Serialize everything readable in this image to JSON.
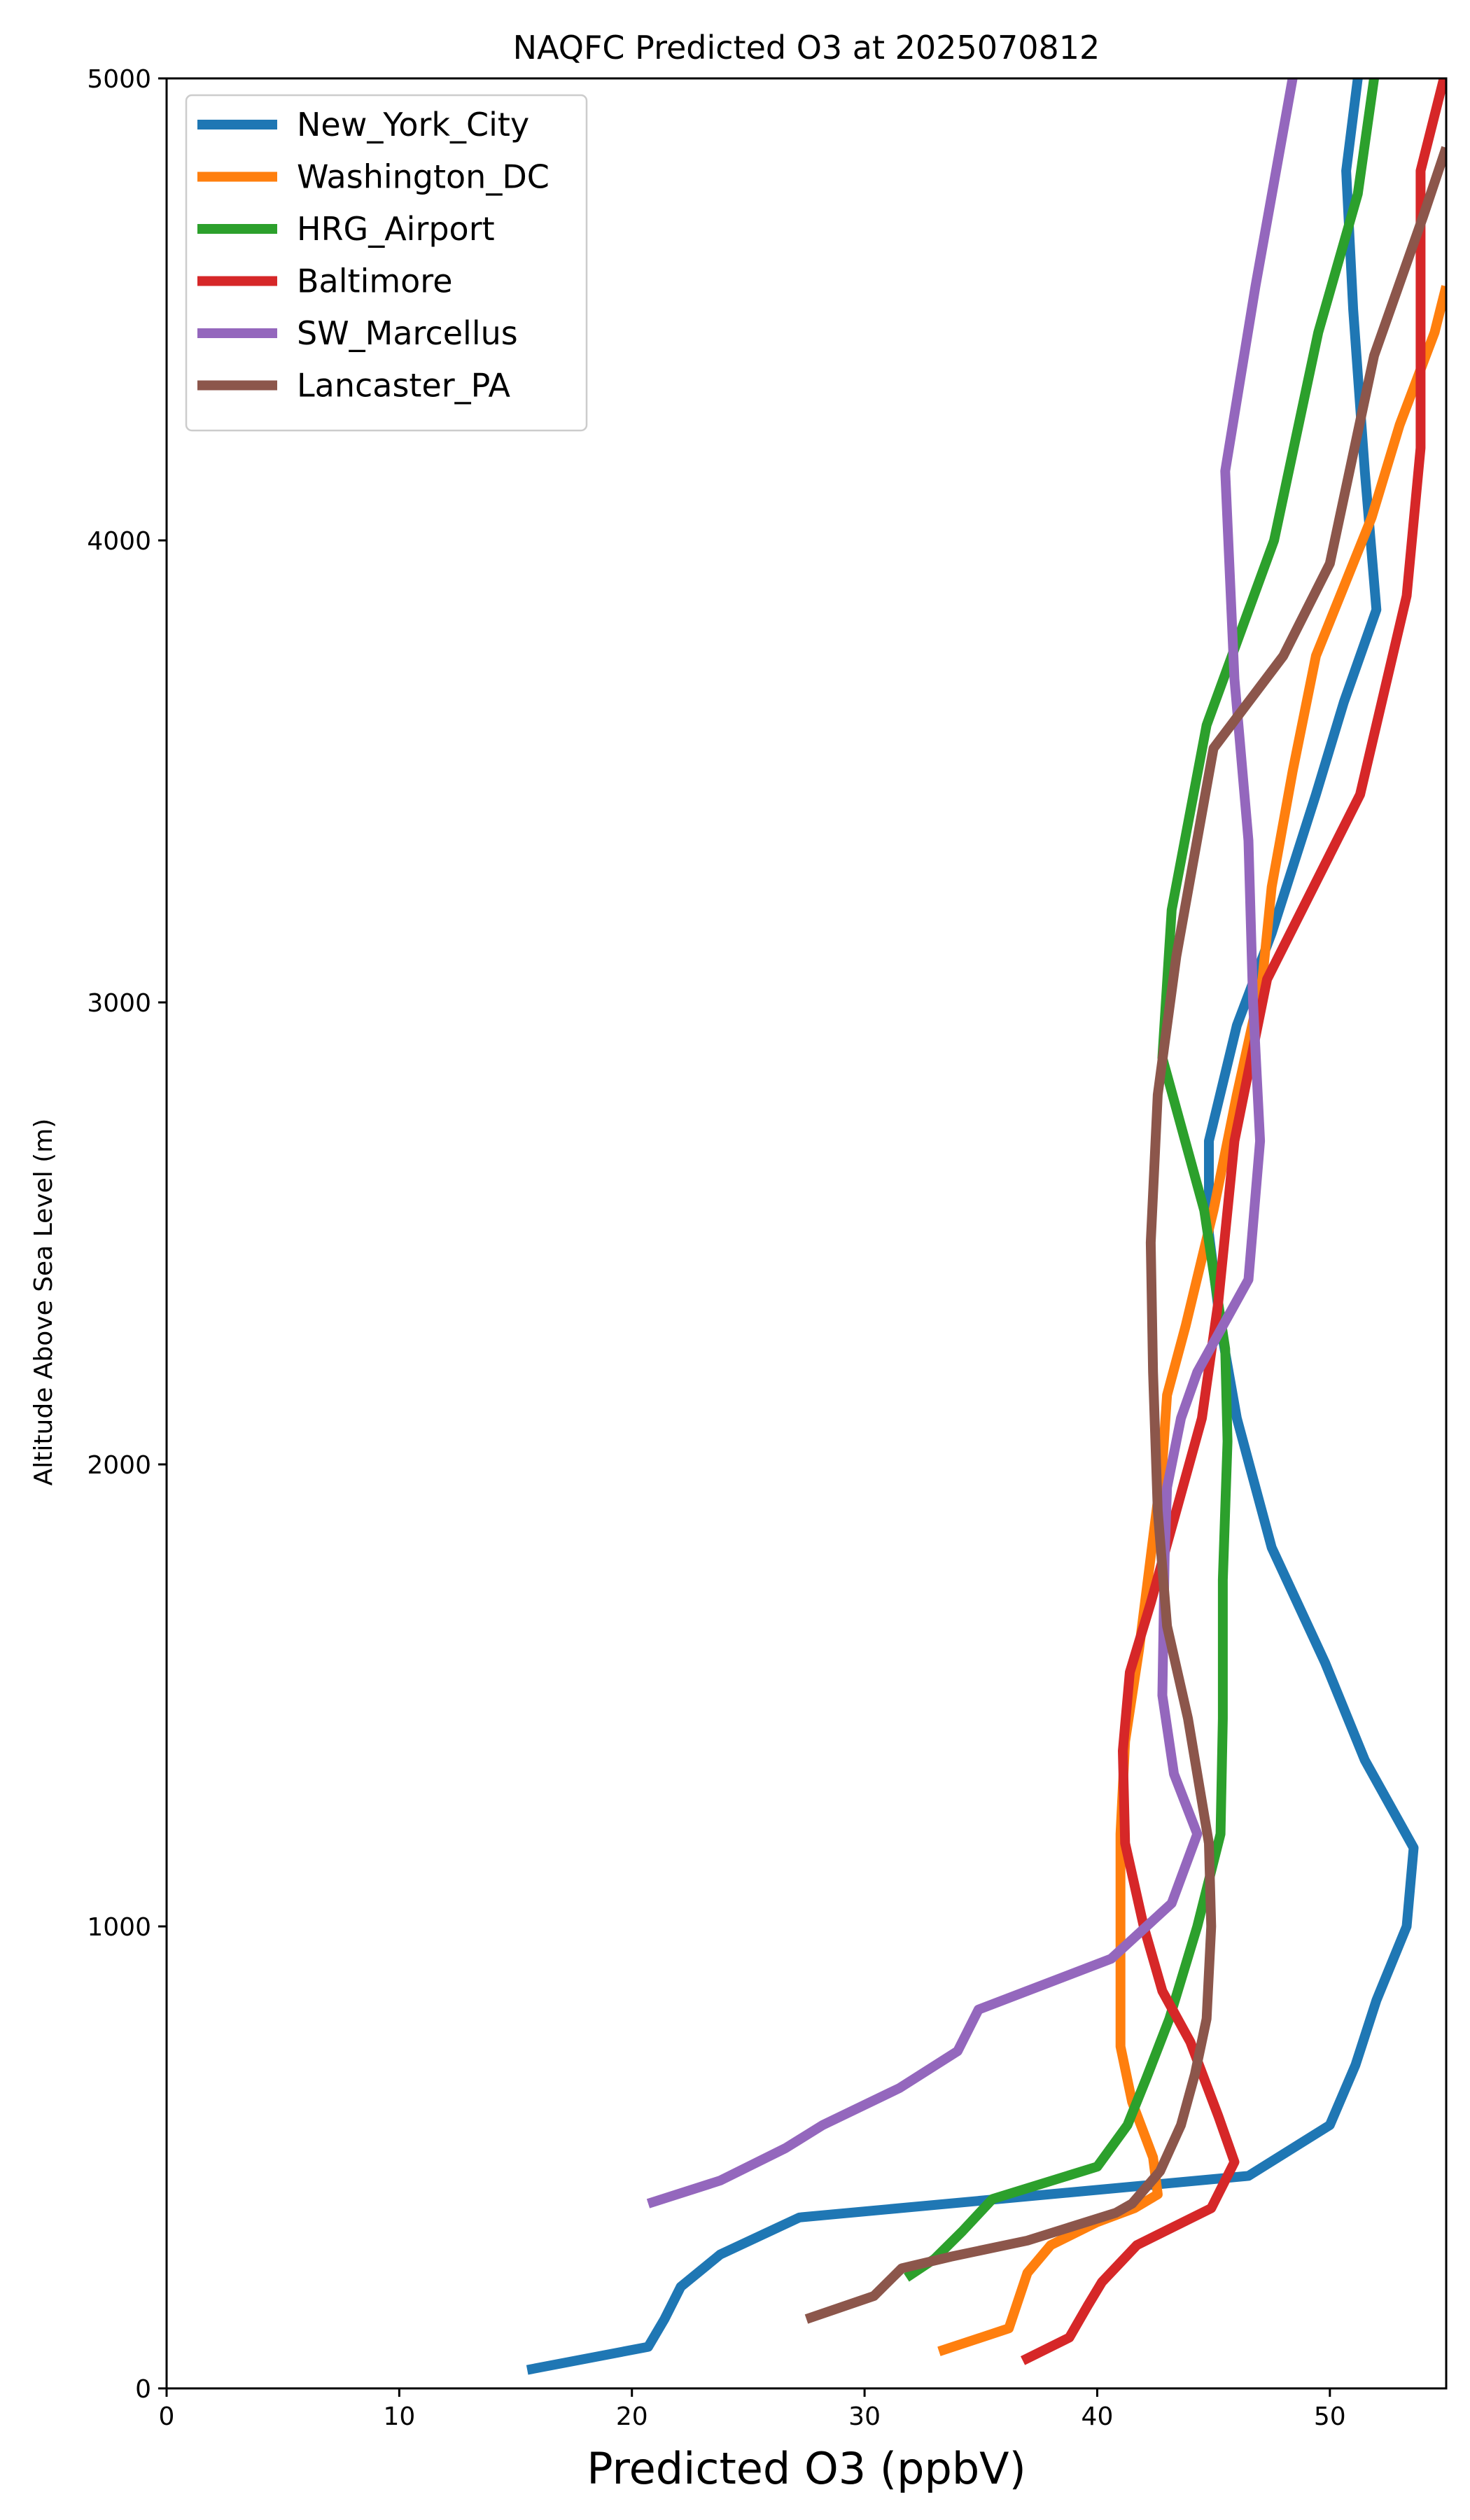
{
  "chart_data": {
    "type": "line",
    "title": "NAQFC Predicted O3 at 2025070812",
    "xlabel": "Predicted O3 (ppbV)",
    "ylabel": "Altitude Above Sea Level (m)",
    "xlim": [
      0,
      55
    ],
    "ylim": [
      0,
      5000
    ],
    "xticks": [
      0,
      10,
      20,
      30,
      40,
      50
    ],
    "yticks": [
      0,
      1000,
      2000,
      3000,
      4000,
      5000
    ],
    "grid": false,
    "legend_position": "upper-left",
    "series": [
      {
        "name": "New_York_City",
        "color": "#1f77b4",
        "points": [
          [
            15.5,
            40
          ],
          [
            20.7,
            90
          ],
          [
            21.4,
            150
          ],
          [
            22.1,
            220
          ],
          [
            23.8,
            290
          ],
          [
            27.2,
            370
          ],
          [
            46.5,
            460
          ],
          [
            50.0,
            570
          ],
          [
            51.1,
            700
          ],
          [
            52.0,
            840
          ],
          [
            53.3,
            1000
          ],
          [
            53.6,
            1170
          ],
          [
            51.5,
            1360
          ],
          [
            49.8,
            1570
          ],
          [
            47.5,
            1820
          ],
          [
            46.0,
            2100
          ],
          [
            45.3,
            2300
          ],
          [
            44.8,
            2500
          ],
          [
            44.8,
            2700
          ],
          [
            46.0,
            2950
          ],
          [
            47.5,
            3150
          ],
          [
            49.4,
            3450
          ],
          [
            50.6,
            3650
          ],
          [
            52.0,
            3850
          ],
          [
            51.5,
            4150
          ],
          [
            51.0,
            4500
          ],
          [
            50.7,
            4800
          ],
          [
            51.2,
            5000
          ]
        ]
      },
      {
        "name": "Washington_DC",
        "color": "#ff7f0e",
        "points": [
          [
            33.2,
            80
          ],
          [
            36.2,
            130
          ],
          [
            37.0,
            250
          ],
          [
            38.0,
            310
          ],
          [
            40.0,
            360
          ],
          [
            41.6,
            390
          ],
          [
            42.6,
            420
          ],
          [
            42.4,
            500
          ],
          [
            41.5,
            620
          ],
          [
            41.0,
            740
          ],
          [
            41.0,
            1000
          ],
          [
            41.0,
            1200
          ],
          [
            41.2,
            1400
          ],
          [
            41.8,
            1600
          ],
          [
            42.3,
            1800
          ],
          [
            42.8,
            2000
          ],
          [
            43.0,
            2150
          ],
          [
            43.8,
            2300
          ],
          [
            45.0,
            2550
          ],
          [
            46.0,
            2800
          ],
          [
            47.1,
            3050
          ],
          [
            47.5,
            3250
          ],
          [
            48.4,
            3500
          ],
          [
            49.4,
            3750
          ],
          [
            50.6,
            3900
          ],
          [
            51.8,
            4050
          ],
          [
            53.0,
            4250
          ],
          [
            54.5,
            4450
          ],
          [
            55.0,
            4550
          ]
        ]
      },
      {
        "name": "HRG_Airport",
        "color": "#2ca02c",
        "points": [
          [
            31.8,
            240
          ],
          [
            33.0,
            280
          ],
          [
            34.2,
            340
          ],
          [
            35.5,
            410
          ],
          [
            40.0,
            480
          ],
          [
            41.3,
            570
          ],
          [
            42.1,
            670
          ],
          [
            43.1,
            800
          ],
          [
            44.3,
            1000
          ],
          [
            45.3,
            1200
          ],
          [
            45.4,
            1450
          ],
          [
            45.4,
            1750
          ],
          [
            45.6,
            2050
          ],
          [
            45.5,
            2250
          ],
          [
            44.6,
            2550
          ],
          [
            42.8,
            2880
          ],
          [
            43.2,
            3200
          ],
          [
            44.7,
            3600
          ],
          [
            47.6,
            4000
          ],
          [
            49.5,
            4450
          ],
          [
            51.2,
            4750
          ],
          [
            51.9,
            5000
          ]
        ]
      },
      {
        "name": "Baltimore",
        "color": "#d62728",
        "points": [
          [
            36.8,
            60
          ],
          [
            38.8,
            110
          ],
          [
            39.6,
            180
          ],
          [
            40.2,
            230
          ],
          [
            41.7,
            310
          ],
          [
            44.9,
            390
          ],
          [
            45.9,
            490
          ],
          [
            45.2,
            590
          ],
          [
            44.0,
            750
          ],
          [
            42.8,
            860
          ],
          [
            42.0,
            1000
          ],
          [
            41.2,
            1180
          ],
          [
            41.1,
            1380
          ],
          [
            41.4,
            1550
          ],
          [
            42.3,
            1700
          ],
          [
            43.4,
            1900
          ],
          [
            44.5,
            2100
          ],
          [
            45.2,
            2350
          ],
          [
            45.6,
            2550
          ],
          [
            45.9,
            2700
          ],
          [
            47.3,
            3050
          ],
          [
            51.3,
            3450
          ],
          [
            53.3,
            3880
          ],
          [
            53.9,
            4200
          ],
          [
            53.9,
            4800
          ],
          [
            54.9,
            5000
          ]
        ]
      },
      {
        "name": "SW_Marcellus",
        "color": "#9467bd",
        "points": [
          [
            20.7,
            400
          ],
          [
            23.8,
            450
          ],
          [
            26.6,
            520
          ],
          [
            28.2,
            570
          ],
          [
            31.5,
            650
          ],
          [
            34.0,
            730
          ],
          [
            34.9,
            820
          ],
          [
            40.6,
            930
          ],
          [
            43.2,
            1050
          ],
          [
            44.3,
            1200
          ],
          [
            43.3,
            1330
          ],
          [
            42.8,
            1500
          ],
          [
            42.9,
            1800
          ],
          [
            43.0,
            1950
          ],
          [
            43.6,
            2100
          ],
          [
            44.3,
            2200
          ],
          [
            46.5,
            2400
          ],
          [
            47.0,
            2700
          ],
          [
            46.7,
            3000
          ],
          [
            46.5,
            3350
          ],
          [
            45.9,
            3700
          ],
          [
            45.5,
            4150
          ],
          [
            46.8,
            4550
          ],
          [
            48.4,
            5000
          ]
        ]
      },
      {
        "name": "Lancaster_PA",
        "color": "#8c564b",
        "points": [
          [
            27.5,
            150
          ],
          [
            30.4,
            200
          ],
          [
            31.6,
            260
          ],
          [
            33.7,
            285
          ],
          [
            37.0,
            320
          ],
          [
            40.8,
            380
          ],
          [
            41.5,
            400
          ],
          [
            42.7,
            470
          ],
          [
            43.6,
            570
          ],
          [
            44.2,
            680
          ],
          [
            44.7,
            800
          ],
          [
            44.9,
            1000
          ],
          [
            44.8,
            1180
          ],
          [
            44.4,
            1300
          ],
          [
            43.9,
            1450
          ],
          [
            43.0,
            1650
          ],
          [
            42.6,
            1900
          ],
          [
            42.4,
            2200
          ],
          [
            42.3,
            2480
          ],
          [
            42.6,
            2800
          ],
          [
            43.4,
            3100
          ],
          [
            45.0,
            3550
          ],
          [
            48.0,
            3750
          ],
          [
            50.0,
            3950
          ],
          [
            51.9,
            4400
          ],
          [
            54.0,
            4700
          ],
          [
            55.0,
            4850
          ]
        ]
      }
    ]
  }
}
